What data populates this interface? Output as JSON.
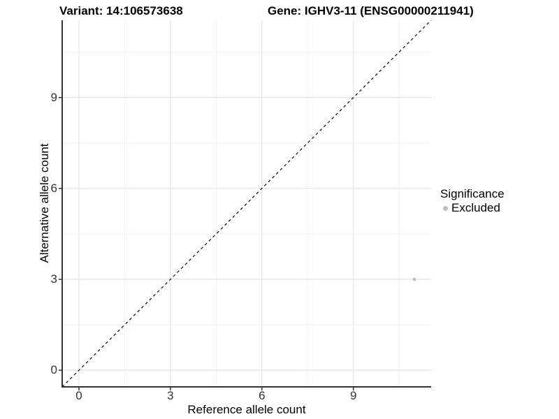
{
  "titles": {
    "variant": "Variant: 14:106573638",
    "gene": "Gene: IGHV3-11 (ENSG00000211941)"
  },
  "chart_data": {
    "type": "scatter",
    "title_left": "Variant: 14:106573638",
    "title_right": "Gene: IGHV3-11 (ENSG00000211941)",
    "xlabel": "Reference allele count",
    "ylabel": "Alternative allele count",
    "xlim": [
      -0.55,
      11.55
    ],
    "ylim": [
      -0.55,
      11.55
    ],
    "xticks": [
      0,
      3,
      6,
      9
    ],
    "yticks": [
      0,
      3,
      6,
      9
    ],
    "minor_tick_offset": 1.5,
    "grid": true,
    "points": [
      {
        "x": 11,
        "y": 3,
        "series": "Excluded"
      }
    ],
    "reference_line": {
      "type": "identity",
      "style": "dashed",
      "color": "#000000"
    },
    "legend": {
      "title": "Significance",
      "position": "right",
      "items": [
        {
          "label": "Excluded",
          "color": "#bebebe"
        }
      ]
    },
    "colors": {
      "point_excluded": "#bebebe",
      "grid_major": "#e4e4e4",
      "grid_minor": "#f2f2f2",
      "axis_line": "#333333",
      "tick_text": "#333333"
    }
  }
}
